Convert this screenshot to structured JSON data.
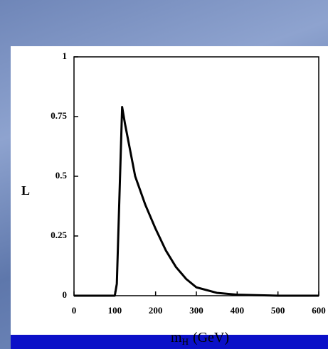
{
  "chart_data": {
    "type": "line",
    "ylabel": "L",
    "xlabel": "m",
    "xlabel_sub": "H",
    "xlabel_unit": "(GeV)",
    "x": [
      0,
      100,
      105,
      118,
      125,
      150,
      175,
      200,
      225,
      250,
      275,
      300,
      350,
      400,
      500,
      600
    ],
    "series": [
      {
        "color": "#000000",
        "values": [
          0,
          0,
          0.05,
          0.79,
          0.72,
          0.5,
          0.38,
          0.28,
          0.19,
          0.12,
          0.07,
          0.035,
          0.012,
          0.004,
          0,
          0
        ]
      }
    ],
    "xlim": [
      0,
      600
    ],
    "xticks": [
      0,
      100,
      200,
      300,
      400,
      500,
      600
    ],
    "ylim": [
      0,
      1
    ],
    "yticks": [
      0,
      0.25,
      0.5,
      0.75,
      1
    ]
  }
}
